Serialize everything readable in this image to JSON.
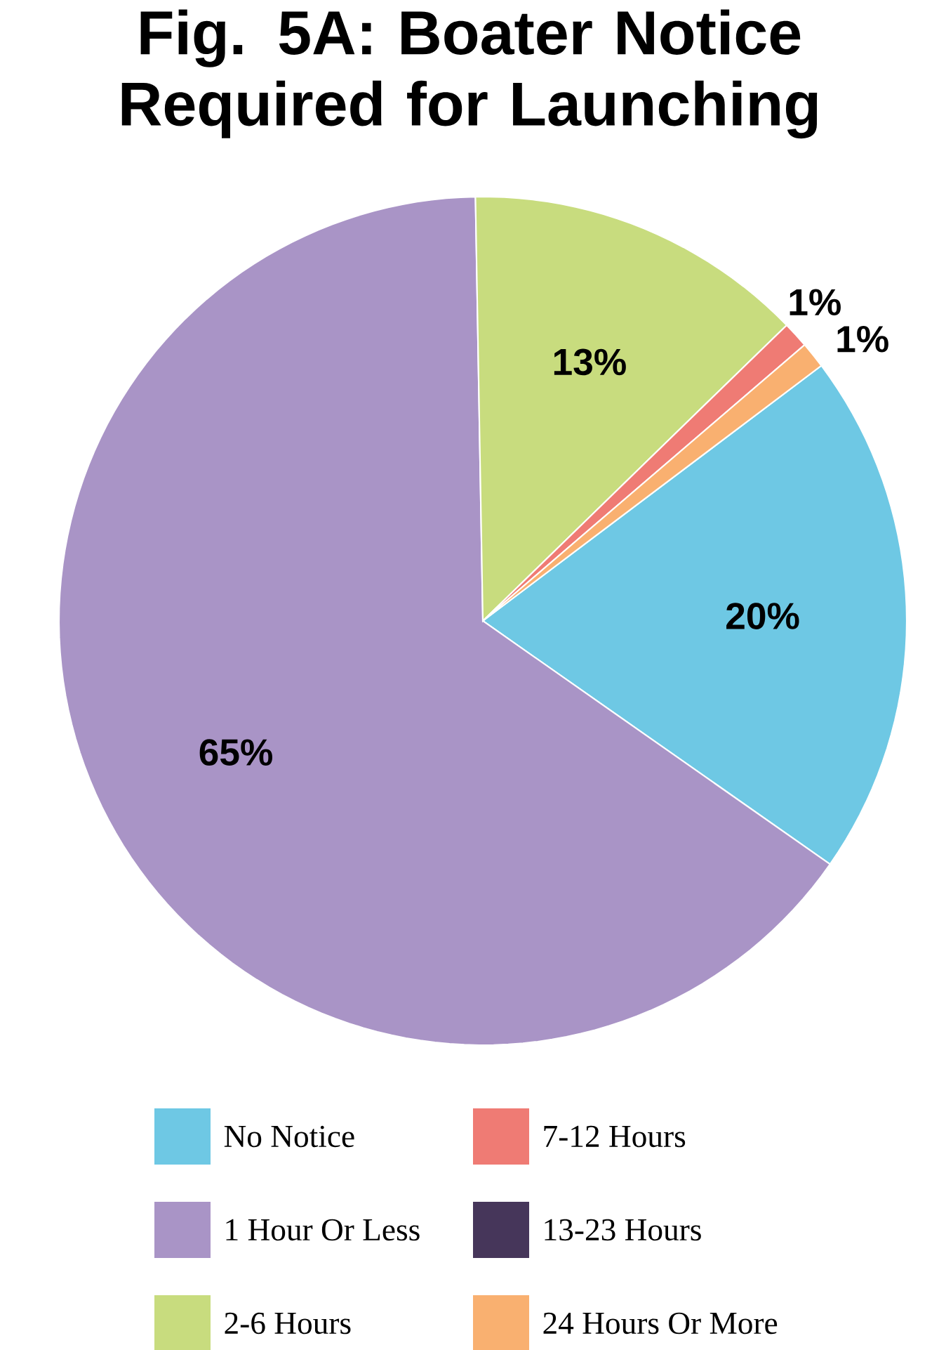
{
  "chart_data": {
    "type": "pie",
    "title": "Fig. 5A: Boater Notice Required for Launching",
    "categories": [
      "No Notice",
      "1 Hour Or Less",
      "2-6 Hours",
      "7-12 Hours",
      "13-23 Hours",
      "24 Hours Or More"
    ],
    "values": [
      20,
      65,
      13,
      1,
      0,
      1
    ],
    "colors": [
      "#6ec8e4",
      "#a994c6",
      "#c8dc7e",
      "#ef7b74",
      "#46365a",
      "#f9b070"
    ],
    "value_labels": [
      "20%",
      "65%",
      "13%",
      "1%",
      null,
      "1%"
    ],
    "legend": "bottom"
  }
}
